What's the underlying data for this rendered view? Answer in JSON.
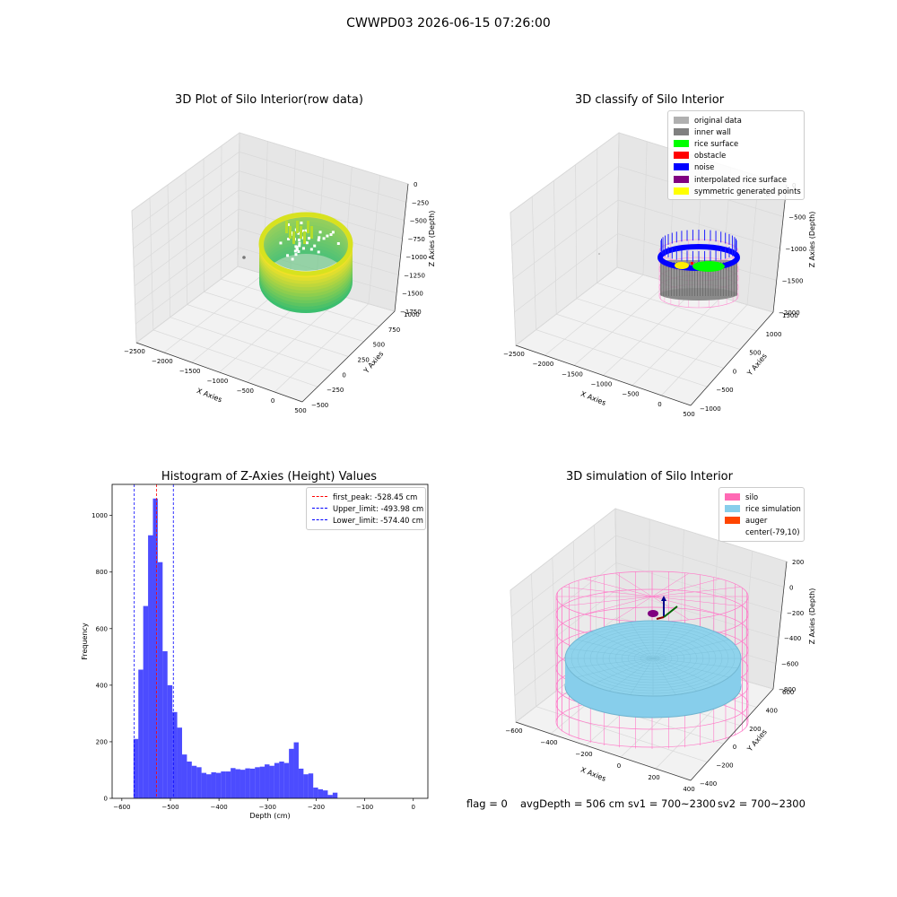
{
  "figure": {
    "suptitle": "CWWPD03 2026-06-15 07:26:00",
    "footer": {
      "flag": "flag = 0",
      "avg": "avgDepth = 506 cm",
      "sv1": "sv1 = 700~2300",
      "sv2": "sv2 = 700~2300"
    }
  },
  "chart_data": [
    {
      "type": "scatter",
      "projection": "3d",
      "title": "3D Plot of Silo Interior(row data)",
      "xlabel": "X Axies",
      "ylabel": "Y Axies",
      "zlabel": "Z Axies (Depth)",
      "x_ticks": [
        "−2500",
        "−2000",
        "−1500",
        "−1000",
        "−500",
        "0",
        "500"
      ],
      "y_ticks": [
        "−500",
        "−250",
        "0",
        "250",
        "500",
        "750",
        "1000"
      ],
      "z_ticks": [
        "0",
        "−250",
        "−500",
        "−750",
        "−1000",
        "−1250",
        "−1500",
        "−1750"
      ],
      "colormap": "viridis (green to yellow)"
    },
    {
      "type": "scatter",
      "projection": "3d",
      "title": "3D classify of Silo Interior",
      "xlabel": "X Axies",
      "ylabel": "Y Axies",
      "zlabel": "Z Axies (Depth)",
      "x_ticks": [
        "−2500",
        "−2000",
        "−1500",
        "−1000",
        "−500",
        "0",
        "500"
      ],
      "y_ticks": [
        "−1000",
        "−500",
        "0",
        "500",
        "1000",
        "1500"
      ],
      "z_ticks": [
        "0",
        "−500",
        "−1000",
        "−1500",
        "−2000"
      ],
      "z_partial_tick": "0",
      "legend": [
        {
          "name": "original data",
          "color": "#b0b0b0"
        },
        {
          "name": "inner wall",
          "color": "#808080"
        },
        {
          "name": "rice surface",
          "color": "#00ff00"
        },
        {
          "name": "obstacle",
          "color": "#ff0000"
        },
        {
          "name": "noise",
          "color": "#0000ff"
        },
        {
          "name": "interpolated rice surface",
          "color": "#800080"
        },
        {
          "name": "symmetric generated points",
          "color": "#ffff00"
        }
      ]
    },
    {
      "type": "bar",
      "subtype": "histogram",
      "title": "Histogram of Z-Axies (Height) Values",
      "xlabel": "Depth (cm)",
      "ylabel": "Frequency",
      "xlim": [
        -620,
        30
      ],
      "ylim": [
        0,
        1110
      ],
      "x_ticks": [
        -600,
        -500,
        -400,
        -300,
        -200,
        -100,
        0
      ],
      "y_ticks": [
        0,
        200,
        400,
        600,
        800,
        1000
      ],
      "bin_start": -576,
      "bin_width": 10,
      "values": [
        210,
        455,
        680,
        930,
        1060,
        835,
        520,
        400,
        305,
        250,
        155,
        130,
        115,
        110,
        90,
        85,
        92,
        90,
        95,
        95,
        107,
        103,
        101,
        106,
        105,
        110,
        112,
        120,
        115,
        125,
        130,
        125,
        175,
        198,
        105,
        85,
        88,
        38,
        32,
        28,
        12,
        20
      ],
      "bar_color": "#0000ff",
      "vlines": [
        {
          "name": "first_peak: -528.45 cm",
          "x": -528.45,
          "color": "#ff0000"
        },
        {
          "name": "Upper_limit: -493.98 cm",
          "x": -493.98,
          "color": "#0000ff"
        },
        {
          "name": "Lower_limit: -574.40 cm",
          "x": -574.4,
          "color": "#0000ff"
        }
      ]
    },
    {
      "type": "scatter",
      "projection": "3d",
      "title": "3D simulation of Silo Interior",
      "xlabel": "X Axies",
      "ylabel": "Y Axies",
      "zlabel": "Z Axies (Depth)",
      "x_ticks": [
        "−600",
        "−400",
        "−200",
        "0",
        "200",
        "400"
      ],
      "y_ticks": [
        "−400",
        "−200",
        "0",
        "200",
        "400",
        "600"
      ],
      "z_ticks": [
        "200",
        "0",
        "−200",
        "−400",
        "−600",
        "−800"
      ],
      "legend": [
        {
          "name": "silo",
          "color": "#ff69b4"
        },
        {
          "name": "rice simulation",
          "color": "#87ceeb"
        },
        {
          "name": "auger",
          "color": "#ff4500"
        },
        {
          "name": "center(-79,10)",
          "color": ""
        }
      ]
    }
  ]
}
